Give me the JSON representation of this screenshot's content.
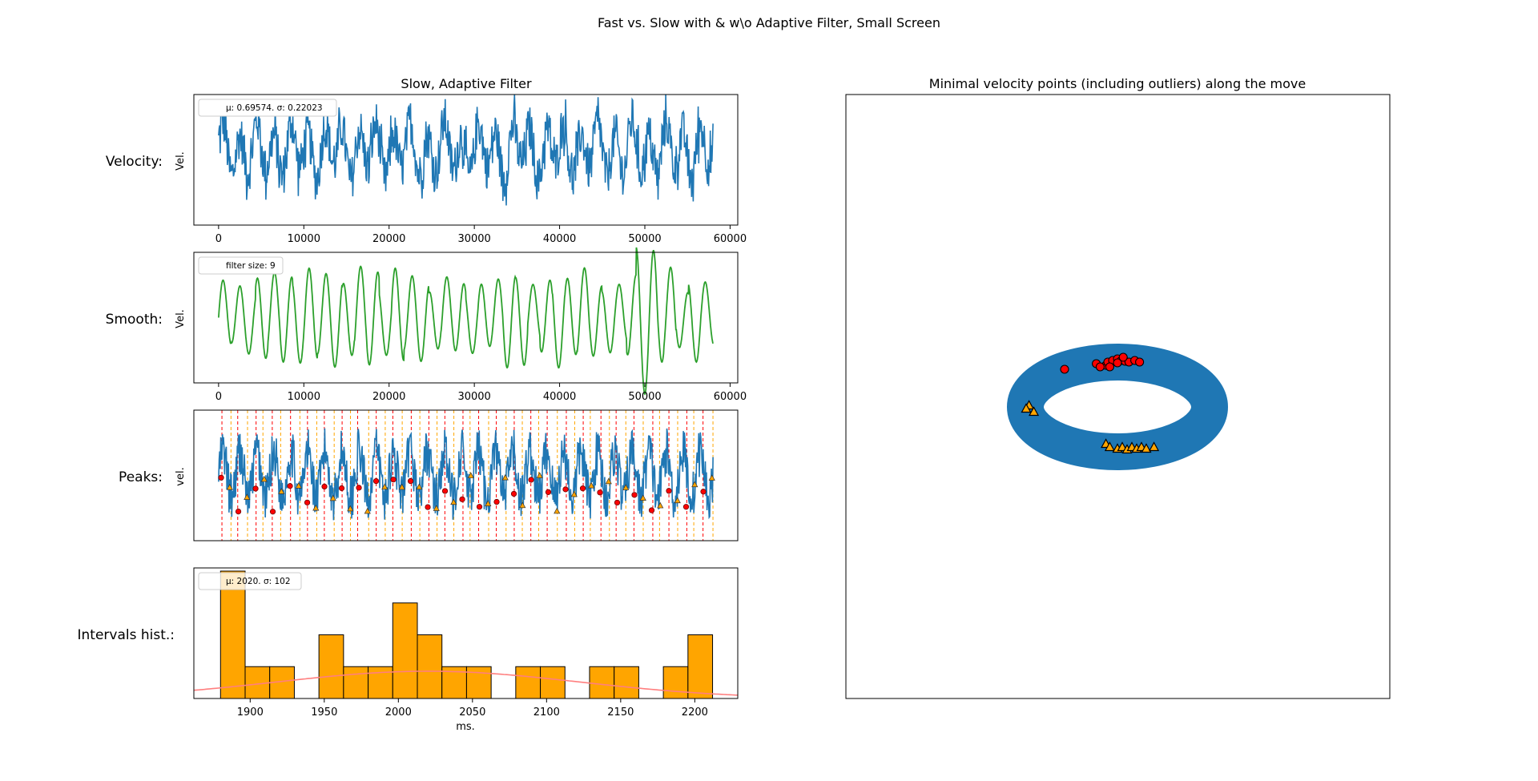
{
  "figure_title": "Fast vs. Slow with & w\\o Adaptive Filter, Small Screen",
  "colors": {
    "velocity": "#1f77b4",
    "smooth": "#2ca02c",
    "hist_bar": "#ffa500",
    "normal_curve": "#ff7f7f",
    "peak_red": "#ff0000",
    "peak_orange": "#ffa500"
  },
  "chart_data": [
    {
      "id": "velocity",
      "type": "line",
      "title": "Slow, Adaptive Filter",
      "row_label": "Velocity:",
      "ylabel": "Vel.",
      "legend": "$\\mu$: 0.69574.  $\\sigma$: 0.22023",
      "legend_text": "μ: 0.69574.  σ: 0.22023",
      "xlim": [
        -2900,
        60900
      ],
      "xticks": [
        0,
        10000,
        20000,
        30000,
        40000,
        50000,
        60000
      ],
      "x_range": [
        0,
        58000
      ],
      "y_mean": 0.69574,
      "y_std": 0.22023,
      "y_min_visible": -0.05,
      "y_max_visible": 1.25
    },
    {
      "id": "smooth",
      "type": "line",
      "row_label": "Smooth:",
      "ylabel": "Vel.",
      "legend_text": "filter size: 9",
      "xlim": [
        -2900,
        60900
      ],
      "xticks": [
        0,
        10000,
        20000,
        30000,
        40000,
        50000,
        60000
      ],
      "x_range": [
        0,
        58000
      ]
    },
    {
      "id": "peaks",
      "type": "line",
      "row_label": "Peaks:",
      "ylabel": "vel.",
      "markers": "red circles = minima, orange triangles = maxima; dashed vertical lines mark each"
    },
    {
      "id": "intervals",
      "type": "bar",
      "row_label": "Intervals hist.:",
      "xlabel": "ms.",
      "legend_text": "μ: 2020.  σ: 102",
      "mean": 2020,
      "std": 102,
      "xlim": [
        1862,
        2229
      ],
      "xticks": [
        1900,
        1950,
        2000,
        2050,
        2100,
        2150,
        2200
      ],
      "bin_edges": [
        1880,
        1896.6,
        1913.2,
        1929.8,
        1946.4,
        1963.0,
        1979.6,
        1996.2,
        2012.8,
        2029.4,
        2046.0,
        2062.6,
        2079.2,
        2095.8,
        2112.4,
        2129.0,
        2145.6,
        2162.2,
        2178.8,
        2195.4,
        2212.0
      ],
      "counts": [
        4,
        1,
        1,
        0,
        2,
        1,
        1,
        3,
        2,
        1,
        1,
        0,
        1,
        1,
        0,
        1,
        1,
        0,
        1,
        2
      ],
      "ylim": [
        0,
        4.1
      ]
    },
    {
      "id": "minimal_points",
      "type": "scatter",
      "title": "Minimal velocity points (including outliers) along the move",
      "shape": "ring",
      "red_circles": [
        [
          -0.12,
          0.52
        ],
        [
          -0.22,
          0.54
        ],
        [
          -0.18,
          0.5
        ],
        [
          -0.1,
          0.56
        ],
        [
          -0.05,
          0.58
        ],
        [
          0.0,
          0.6
        ],
        [
          0.04,
          0.58
        ],
        [
          0.08,
          0.57
        ],
        [
          0.12,
          0.56
        ],
        [
          0.18,
          0.58
        ],
        [
          0.23,
          0.56
        ],
        [
          0.06,
          0.62
        ],
        [
          0.0,
          0.55
        ],
        [
          -0.08,
          0.5
        ],
        [
          -0.55,
          0.47
        ]
      ],
      "orange_triangles": [
        [
          -0.92,
          0.02
        ],
        [
          -0.95,
          -0.02
        ],
        [
          -0.87,
          -0.06
        ],
        [
          -0.12,
          -0.46
        ],
        [
          -0.08,
          -0.5
        ],
        [
          0.0,
          -0.52
        ],
        [
          0.05,
          -0.5
        ],
        [
          0.1,
          -0.53
        ],
        [
          0.15,
          -0.5
        ],
        [
          0.2,
          -0.52
        ],
        [
          0.25,
          -0.5
        ],
        [
          0.3,
          -0.52
        ],
        [
          0.38,
          -0.5
        ]
      ]
    }
  ]
}
